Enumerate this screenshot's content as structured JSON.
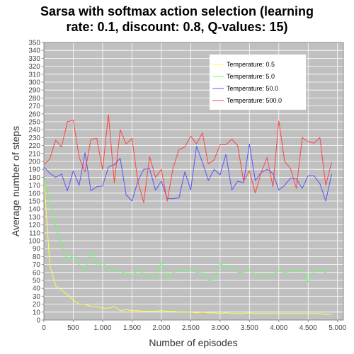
{
  "chart_data": {
    "type": "line",
    "title_lines": [
      "Sarsa with softmax action selection (learning",
      "rate: 0.1, discount: 0.8, Q-values: 15)"
    ],
    "xlabel": "Number of episodes",
    "ylabel": "Average number of steps",
    "xlim": [
      0,
      5100
    ],
    "ylim": [
      0,
      350
    ],
    "xticks": [
      0,
      500,
      1000,
      1500,
      2000,
      2500,
      3000,
      3500,
      4000,
      4500,
      5000
    ],
    "xtick_labels": [
      "0",
      "500",
      "1.000",
      "1.500",
      "2.000",
      "2.500",
      "3.000",
      "3.500",
      "4.000",
      "4.500",
      "5.000"
    ],
    "yticks": [
      0,
      10,
      20,
      30,
      40,
      50,
      60,
      70,
      80,
      90,
      100,
      110,
      120,
      130,
      140,
      150,
      160,
      170,
      180,
      190,
      200,
      210,
      220,
      230,
      240,
      250,
      260,
      270,
      280,
      290,
      300,
      310,
      320,
      330,
      340,
      350
    ],
    "grid": true,
    "legend_position": "top-right",
    "colors": {
      "plot_background": "#c0c0c0",
      "grid": "#ffffff"
    },
    "x": [
      0,
      100,
      200,
      300,
      400,
      500,
      600,
      700,
      800,
      900,
      1000,
      1100,
      1200,
      1300,
      1400,
      1500,
      1600,
      1700,
      1800,
      1900,
      2000,
      2100,
      2200,
      2300,
      2400,
      2500,
      2600,
      2700,
      2800,
      2900,
      3000,
      3100,
      3200,
      3300,
      3400,
      3500,
      3600,
      3700,
      3800,
      3900,
      4000,
      4100,
      4200,
      4300,
      4400,
      4500,
      4600,
      4700,
      4800,
      4900
    ],
    "series": [
      {
        "name": "Temperature: 0.5",
        "color": "#ffff44",
        "values": [
          180,
          70,
          43,
          38,
          32,
          25,
          20,
          20,
          17,
          17,
          15,
          15,
          17,
          12,
          13,
          12,
          12,
          11,
          11,
          11,
          12,
          11,
          11,
          10,
          10,
          10,
          9,
          10,
          9,
          9,
          8,
          9,
          8,
          8,
          8,
          9,
          8,
          8,
          8,
          8,
          8,
          8,
          8,
          8,
          8,
          8,
          8,
          8,
          7,
          7
        ]
      },
      {
        "name": "Temperature: 5.0",
        "color": "#66ff66",
        "values": [
          180,
          150,
          120,
          95,
          75,
          82,
          70,
          62,
          87,
          68,
          72,
          65,
          62,
          62,
          58,
          55,
          64,
          58,
          55,
          55,
          73,
          52,
          60,
          62,
          62,
          65,
          60,
          61,
          50,
          51,
          71,
          67,
          67,
          60,
          60,
          63,
          58,
          55,
          56,
          58,
          62,
          60,
          61,
          62,
          65,
          48,
          62,
          62,
          60,
          66
        ]
      },
      {
        "name": "Temperature: 50.0",
        "color": "#5555ff",
        "values": [
          193,
          185,
          180,
          184,
          163,
          188,
          170,
          211,
          163,
          168,
          169,
          193,
          196,
          204,
          158,
          150,
          175,
          190,
          191,
          164,
          175,
          153,
          153,
          154,
          187,
          164,
          219,
          199,
          176,
          190,
          183,
          209,
          164,
          175,
          173,
          222,
          176,
          186,
          190,
          185,
          164,
          170,
          179,
          178,
          166,
          182,
          182,
          172,
          150,
          184
        ]
      },
      {
        "name": "Temperature: 500.0",
        "color": "#ff4444",
        "values": [
          196,
          203,
          227,
          218,
          250,
          252,
          205,
          187,
          228,
          229,
          190,
          259,
          173,
          240,
          222,
          229,
          175,
          148,
          206,
          180,
          190,
          150,
          192,
          215,
          218,
          232,
          222,
          236,
          197,
          202,
          221,
          221,
          228,
          220,
          175,
          188,
          160,
          186,
          205,
          168,
          251,
          200,
          191,
          166,
          230,
          225,
          223,
          230,
          170,
          199
        ]
      }
    ]
  }
}
